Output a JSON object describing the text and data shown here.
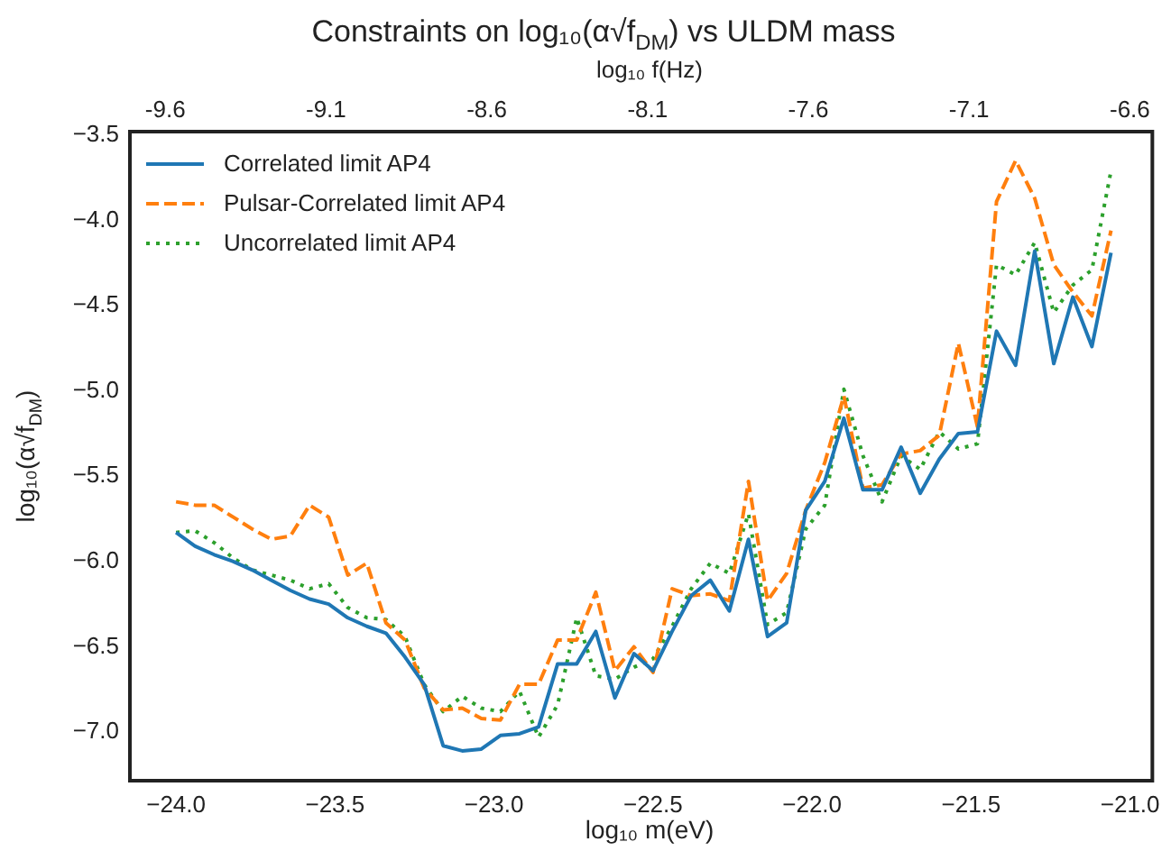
{
  "chart_data": {
    "type": "line",
    "title": "Constraints on log₁₀(α√f$_{DM}$) vs ULDM mass",
    "xlabel": "log₁₀ m(eV)",
    "ylabel": "log₁₀(α√f$_{DM}$)",
    "x2label": "log₁₀ f(Hz)",
    "x": [
      -24,
      -23.94,
      -23.88,
      -23.82,
      -23.76,
      -23.7,
      -23.64,
      -23.58,
      -23.52,
      -23.46,
      -23.4,
      -23.34,
      -23.28,
      -23.22,
      -23.16,
      -23.1,
      -23.04,
      -22.98,
      -22.92,
      -22.86,
      -22.8,
      -22.74,
      -22.68,
      -22.62,
      -22.56,
      -22.5,
      -22.44,
      -22.38,
      -22.32,
      -22.26,
      -22.2,
      -22.14,
      -22.08,
      -22.02,
      -21.96,
      -21.9,
      -21.84,
      -21.78,
      -21.72,
      -21.66,
      -21.6,
      -21.54,
      -21.48,
      -21.42,
      -21.36,
      -21.3,
      -21.24,
      -21.18,
      -21.12,
      -21.06
    ],
    "series": [
      {
        "name": "Correlated limit AP4",
        "color": "#1f77b4",
        "line_style": "solid",
        "values": [
          -5.83,
          -5.91,
          -5.96,
          -6.0,
          -6.05,
          -6.11,
          -6.17,
          -6.22,
          -6.25,
          -6.33,
          -6.38,
          -6.42,
          -6.56,
          -6.72,
          -7.08,
          -7.11,
          -7.1,
          -7.02,
          -7.01,
          -6.97,
          -6.6,
          -6.6,
          -6.41,
          -6.8,
          -6.54,
          -6.64,
          -6.41,
          -6.2,
          -6.11,
          -6.29,
          -5.87,
          -6.44,
          -6.36,
          -5.7,
          -5.53,
          -5.16,
          -5.58,
          -5.58,
          -5.33,
          -5.6,
          -5.4,
          -5.25,
          -5.24,
          -4.65,
          -4.85,
          -4.18,
          -4.84,
          -4.45,
          -4.74,
          -4.19
        ]
      },
      {
        "name": "Pulsar-Correlated limit AP4",
        "color": "#ff7f0e",
        "line_style": "dashed",
        "values": [
          -5.65,
          -5.67,
          -5.67,
          -5.74,
          -5.81,
          -5.87,
          -5.85,
          -5.67,
          -5.74,
          -6.08,
          -6.01,
          -6.36,
          -6.46,
          -6.74,
          -6.87,
          -6.86,
          -6.92,
          -6.93,
          -6.72,
          -6.72,
          -6.46,
          -6.46,
          -6.18,
          -6.64,
          -6.5,
          -6.65,
          -6.16,
          -6.2,
          -6.19,
          -6.23,
          -5.53,
          -6.23,
          -6.07,
          -5.7,
          -5.42,
          -5.03,
          -5.57,
          -5.55,
          -5.37,
          -5.35,
          -5.26,
          -4.72,
          -5.21,
          -3.89,
          -3.65,
          -3.87,
          -4.26,
          -4.42,
          -4.56,
          -4.06
        ]
      },
      {
        "name": "Uncorrelated limit AP4",
        "color": "#2ca02c",
        "line_style": "dotted",
        "values": [
          -5.83,
          -5.82,
          -5.89,
          -5.98,
          -6.05,
          -6.08,
          -6.11,
          -6.16,
          -6.13,
          -6.27,
          -6.33,
          -6.34,
          -6.44,
          -6.72,
          -6.88,
          -6.79,
          -6.86,
          -6.88,
          -6.76,
          -7.03,
          -6.84,
          -6.33,
          -6.67,
          -6.69,
          -6.62,
          -6.57,
          -6.38,
          -6.16,
          -6.01,
          -6.07,
          -5.72,
          -6.37,
          -6.3,
          -5.81,
          -5.67,
          -4.99,
          -5.38,
          -5.65,
          -5.38,
          -5.46,
          -5.24,
          -5.34,
          -5.31,
          -4.26,
          -4.32,
          -4.13,
          -4.54,
          -4.38,
          -4.29,
          -3.71
        ]
      }
    ],
    "xlim": [
      -24.145,
      -20.93
    ],
    "xticks": [
      {
        "value": -24,
        "label": "−24.0"
      },
      {
        "value": -23.5,
        "label": "−23.5"
      },
      {
        "value": -23,
        "label": "−23.0"
      },
      {
        "value": -22.5,
        "label": "−22.5"
      },
      {
        "value": -22,
        "label": "−22.0"
      },
      {
        "value": -21.5,
        "label": "−21.5"
      },
      {
        "value": -21,
        "label": "−21.0"
      }
    ],
    "x2lim": [
      -9.71,
      -6.53
    ],
    "x2ticks": [
      -9.6,
      -9.1,
      -8.6,
      -8.1,
      -7.6,
      -7.1,
      -6.6
    ],
    "ylim": [
      -7.285,
      -3.48
    ],
    "yticks": [
      {
        "value": -3.5,
        "label": "−3.5"
      },
      {
        "value": -4,
        "label": "−4.0"
      },
      {
        "value": -4.5,
        "label": "−4.5"
      },
      {
        "value": -5,
        "label": "−5.0"
      },
      {
        "value": -5.5,
        "label": "−5.5"
      },
      {
        "value": -6,
        "label": "−6.0"
      },
      {
        "value": -6.5,
        "label": "−6.5"
      },
      {
        "value": -7,
        "label": "−7.0"
      }
    ],
    "legend": "top left",
    "marker": "none"
  }
}
